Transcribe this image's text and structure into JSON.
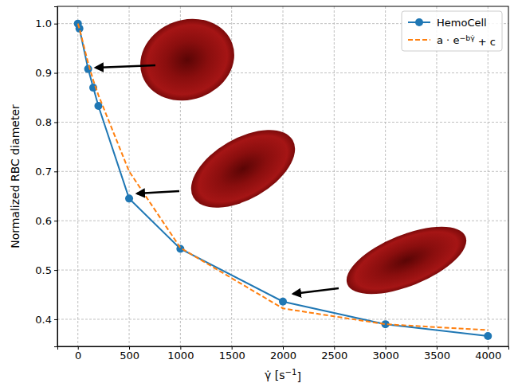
{
  "chart_data": {
    "type": "line",
    "x_label": "γ̇ [s−1]",
    "y_label": "Normalized RBC diameter",
    "x": [
      0,
      15,
      100,
      150,
      200,
      500,
      1000,
      2000,
      3000,
      4000
    ],
    "series": [
      {
        "name": "HemoCell",
        "color": "#1f77b4",
        "marker": "circle",
        "line_style": "solid",
        "values": [
          1.0,
          0.99,
          0.908,
          0.87,
          0.833,
          0.645,
          0.543,
          0.436,
          0.39,
          0.366
        ]
      },
      {
        "name": "a · e−bγ̇ + c",
        "color": "#ff7f0e",
        "marker": "none",
        "line_style": "dashed",
        "values": [
          1.0,
          0.99,
          0.92,
          0.885,
          0.855,
          0.7,
          0.545,
          0.422,
          0.39,
          0.378
        ]
      }
    ],
    "xlim": [
      -200,
      4200
    ],
    "ylim": [
      0.345,
      1.035
    ],
    "xticks": [
      0,
      500,
      1000,
      1500,
      2000,
      2500,
      3000,
      3500,
      4000
    ],
    "yticks": [
      0.4,
      0.5,
      0.6,
      0.7,
      0.8,
      0.9,
      {
        "value": 1.0,
        "label": "1.0"
      }
    ],
    "grid": true,
    "legend": "upper right"
  }
}
